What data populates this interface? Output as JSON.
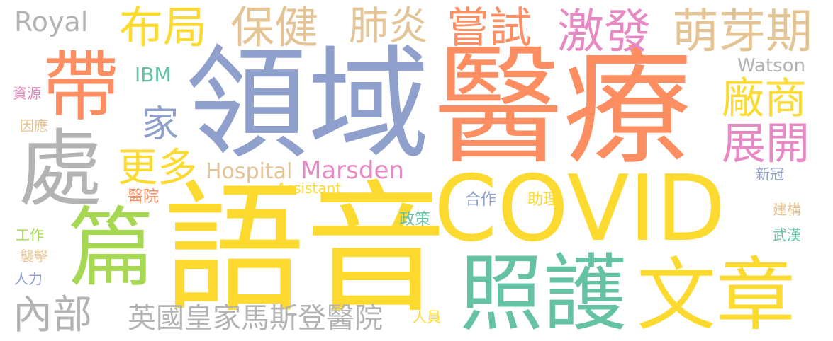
{
  "colors": {
    "yellow": "#FDDA30",
    "orange": "#FC8E62",
    "blue": "#8EA0CB",
    "green": "#66C2A5",
    "pink": "#E78AC3",
    "tan": "#E4C494",
    "lime": "#A6D854",
    "gray": "#B3B3B3",
    "background": "#FFFFFF"
  },
  "words": [
    {
      "key": "covid",
      "text": "COVID",
      "color": "#FDDA30"
    },
    {
      "key": "yuyin",
      "text": "語音",
      "color": "#FDDA30"
    },
    {
      "key": "yiliao",
      "text": "醫療",
      "color": "#FC8E62"
    },
    {
      "key": "lingyu",
      "text": "領域",
      "color": "#8EA0CB"
    },
    {
      "key": "zhaohu",
      "text": "照護",
      "color": "#66C2A5"
    },
    {
      "key": "wenzhang",
      "text": "文章",
      "color": "#FDDA30"
    },
    {
      "key": "pian",
      "text": "篇",
      "color": "#A6D854"
    },
    {
      "key": "chu",
      "text": "處",
      "color": "#B3B3B3"
    },
    {
      "key": "dai",
      "text": "帶",
      "color": "#FC8E62"
    },
    {
      "key": "bujv",
      "text": "布局",
      "color": "#FDDA30"
    },
    {
      "key": "baojian",
      "text": "保健",
      "color": "#E4C494"
    },
    {
      "key": "feiyan",
      "text": "肺炎",
      "color": "#E4C494"
    },
    {
      "key": "changshi",
      "text": "嘗試",
      "color": "#FC8E62"
    },
    {
      "key": "jifa",
      "text": "激發",
      "color": "#E78AC3"
    },
    {
      "key": "mengyaqi",
      "text": "萌芽期",
      "color": "#E4C494"
    },
    {
      "key": "changshang",
      "text": "廠商",
      "color": "#FDDA30"
    },
    {
      "key": "zhankai",
      "text": "展開",
      "color": "#E78AC3"
    },
    {
      "key": "gengduo",
      "text": "更多",
      "color": "#FDDA30"
    },
    {
      "key": "jia",
      "text": "家",
      "color": "#8EA0CB"
    },
    {
      "key": "neibu",
      "text": "內部",
      "color": "#B3B3B3"
    },
    {
      "key": "yingguo",
      "text": "英國皇家馬斯登醫院",
      "color": "#B3B3B3"
    },
    {
      "key": "royal",
      "text": "Royal",
      "color": "#B3B3B3"
    },
    {
      "key": "ibm",
      "text": "IBM",
      "color": "#66C2A5"
    },
    {
      "key": "hospital",
      "text": "Hospital",
      "color": "#E4C494"
    },
    {
      "key": "marsden",
      "text": "Marsden",
      "color": "#E78AC3"
    },
    {
      "key": "watson",
      "text": "Watson",
      "color": "#B3B3B3"
    },
    {
      "key": "assistant",
      "text": "Assistant",
      "color": "#FDDA30"
    },
    {
      "key": "hezuo",
      "text": "合作",
      "color": "#8EA0CB"
    },
    {
      "key": "zhuli",
      "text": "助理",
      "color": "#FDDA30"
    },
    {
      "key": "zhengce",
      "text": "政策",
      "color": "#66C2A5"
    },
    {
      "key": "yiyuan",
      "text": "醫院",
      "color": "#FC8E62"
    },
    {
      "key": "ziyuan",
      "text": "資源",
      "color": "#E78AC3"
    },
    {
      "key": "yinying",
      "text": "因應",
      "color": "#E4C494"
    },
    {
      "key": "gongzuo",
      "text": "工作",
      "color": "#A6D854"
    },
    {
      "key": "xiji",
      "text": "襲擊",
      "color": "#E4C494"
    },
    {
      "key": "renli",
      "text": "人力",
      "color": "#8EA0CB"
    },
    {
      "key": "renyuan",
      "text": "人員",
      "color": "#FDDA30"
    },
    {
      "key": "xinguan",
      "text": "新冠",
      "color": "#8EA0CB"
    },
    {
      "key": "jiangou",
      "text": "建構",
      "color": "#E4C494"
    },
    {
      "key": "wuhan",
      "text": "武漢",
      "color": "#66C2A5"
    }
  ]
}
